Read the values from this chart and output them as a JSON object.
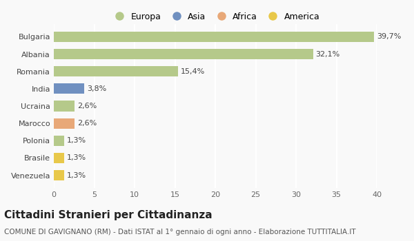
{
  "categories": [
    "Venezuela",
    "Brasile",
    "Polonia",
    "Marocco",
    "Ucraina",
    "India",
    "Romania",
    "Albania",
    "Bulgaria"
  ],
  "values": [
    1.3,
    1.3,
    1.3,
    2.6,
    2.6,
    3.8,
    15.4,
    32.1,
    39.7
  ],
  "labels": [
    "1,3%",
    "1,3%",
    "1,3%",
    "2,6%",
    "2,6%",
    "3,8%",
    "15,4%",
    "32,1%",
    "39,7%"
  ],
  "colors": [
    "#e8c84a",
    "#e8c84a",
    "#b5c98a",
    "#e8a878",
    "#b5c98a",
    "#7090c0",
    "#b5c98a",
    "#b5c98a",
    "#b5c98a"
  ],
  "legend_labels": [
    "Europa",
    "Asia",
    "Africa",
    "America"
  ],
  "legend_colors": [
    "#b5c98a",
    "#7090c0",
    "#e8a878",
    "#e8c84a"
  ],
  "title": "Cittadini Stranieri per Cittadinanza",
  "subtitle": "COMUNE DI GAVIGNANO (RM) - Dati ISTAT al 1° gennaio di ogni anno - Elaborazione TUTTITALIA.IT",
  "xlim": [
    0,
    40
  ],
  "xticks": [
    0,
    5,
    10,
    15,
    20,
    25,
    30,
    35,
    40
  ],
  "bg_color": "#f9f9f9",
  "grid_color": "#ffffff",
  "bar_height": 0.6,
  "title_fontsize": 11,
  "subtitle_fontsize": 7.5,
  "label_fontsize": 8,
  "tick_fontsize": 8,
  "legend_fontsize": 9
}
